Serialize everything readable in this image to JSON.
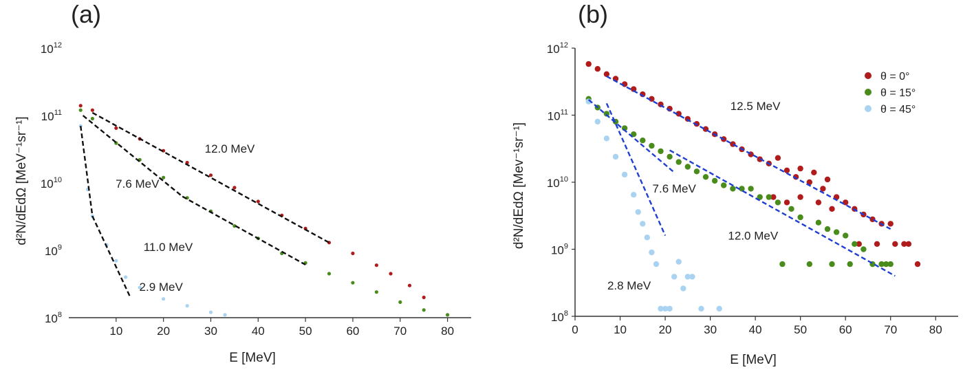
{
  "chart_data": [
    {
      "panel": "(a)",
      "type": "scatter",
      "title": "",
      "xlabel": "E [MeV]",
      "ylabel": "d²N/dEdΩ [MeV⁻¹sr⁻¹]",
      "xlim": [
        0,
        85
      ],
      "ylim": [
        100000000.0,
        1000000000000.0
      ],
      "yscale": "log",
      "x_ticks": [
        "10",
        "20",
        "30",
        "40",
        "50",
        "60",
        "70",
        "80"
      ],
      "y_ticks": [
        {
          "base": "10",
          "exp": "8"
        },
        {
          "base": "10",
          "exp": "9"
        },
        {
          "base": "10",
          "exp": "10"
        },
        {
          "base": "10",
          "exp": "11"
        },
        {
          "base": "10",
          "exp": "12"
        }
      ],
      "grid": false,
      "legend": null,
      "series": [
        {
          "color": "#b01c1c",
          "points": [
            [
              2.5,
              140000000000.0
            ],
            [
              5,
              120000000000.0
            ],
            [
              10,
              65000000000.0
            ],
            [
              15,
              45000000000.0
            ],
            [
              20,
              30000000000.0
            ],
            [
              25,
              20000000000.0
            ],
            [
              30,
              13000000000.0
            ],
            [
              35,
              8500000000.0
            ],
            [
              40,
              5300000000.0
            ],
            [
              45,
              3300000000.0
            ],
            [
              50,
              2100000000.0
            ],
            [
              55,
              1300000000.0
            ],
            [
              60,
              900000000.0
            ],
            [
              65,
              600000000.0
            ],
            [
              68,
              450000000.0
            ],
            [
              72,
              300000000.0
            ],
            [
              75,
              200000000.0
            ]
          ]
        },
        {
          "color": "#4a8c1c",
          "points": [
            [
              2.5,
              120000000000.0
            ],
            [
              5,
              90000000000.0
            ],
            [
              10,
              39000000000.0
            ],
            [
              15,
              22000000000.0
            ],
            [
              20,
              12000000000.0
            ],
            [
              25,
              6000000000.0
            ],
            [
              30,
              3800000000.0
            ],
            [
              35,
              2300000000.0
            ],
            [
              40,
              1500000000.0
            ],
            [
              45,
              900000000.0
            ],
            [
              50,
              650000000.0
            ],
            [
              55,
              450000000.0
            ],
            [
              60,
              330000000.0
            ],
            [
              65,
              240000000.0
            ],
            [
              70,
              170000000.0
            ],
            [
              75,
              130000000.0
            ],
            [
              80,
              110000000.0
            ]
          ]
        },
        {
          "color": "#a9d3f0",
          "points": [
            [
              2.5,
              70000000000.0
            ],
            [
              4,
              8000000000.0
            ],
            [
              5,
              3200000000.0
            ],
            [
              8,
              1200000000.0
            ],
            [
              10,
              700000000.0
            ],
            [
              12,
              400000000.0
            ],
            [
              15,
              280000000.0
            ],
            [
              20,
              190000000.0
            ],
            [
              25,
              150000000.0
            ],
            [
              30,
              120000000.0
            ],
            [
              33,
              110000000.0
            ]
          ]
        }
      ],
      "fits": [
        {
          "label": "12.0 MeV",
          "points": [
            [
              5,
              110000000000.0
            ],
            [
              55,
              1300000000.0
            ]
          ]
        },
        {
          "label": "7.6 MeV",
          "points": [
            [
              3,
              100000000000.0
            ],
            [
              24,
              6300000000.0
            ]
          ]
        },
        {
          "label": "11.0 MeV",
          "points": [
            [
              24,
              6300000000.0
            ],
            [
              50,
              610000000.0
            ]
          ]
        },
        {
          "label": "2.9 MeV",
          "points": [
            [
              2.5,
              70000000000.0
            ],
            [
              5,
              3200000000.0
            ],
            [
              13,
              200000000.0
            ]
          ]
        }
      ],
      "annotations": [
        {
          "text": "12.0 MeV",
          "x": 34,
          "y": 28000000000.0
        },
        {
          "text": "7.6 MeV",
          "x": 14.5,
          "y": 8500000000.0
        },
        {
          "text": "11.0 MeV",
          "x": 21,
          "y": 980000000.0
        },
        {
          "text": "2.9 MeV",
          "x": 19.5,
          "y": 250000000.0
        }
      ]
    },
    {
      "panel": "(b)",
      "type": "scatter",
      "title": "",
      "xlabel": "E [MeV]",
      "ylabel": "d²N/dEdΩ  [Mev⁻¹sr⁻¹]",
      "xlim": [
        0,
        85
      ],
      "ylim": [
        100000000.0,
        1000000000000.0
      ],
      "yscale": "log",
      "x_ticks": [
        "0",
        "10",
        "20",
        "30",
        "40",
        "50",
        "60",
        "70",
        "80"
      ],
      "y_ticks": [
        {
          "base": "10",
          "exp": "8"
        },
        {
          "base": "10",
          "exp": "9"
        },
        {
          "base": "10",
          "exp": "10"
        },
        {
          "base": "10",
          "exp": "11"
        },
        {
          "base": "10",
          "exp": "12"
        }
      ],
      "grid": false,
      "legend": "top-right",
      "series": [
        {
          "name": "θ = 0°",
          "color": "#b01c1c",
          "points": [
            [
              3,
              580000000000.0
            ],
            [
              5,
              490000000000.0
            ],
            [
              7,
              410000000000.0
            ],
            [
              9,
              350000000000.0
            ],
            [
              11,
              290000000000.0
            ],
            [
              13,
              245000000000.0
            ],
            [
              15,
              205000000000.0
            ],
            [
              17,
              175000000000.0
            ],
            [
              19,
              145000000000.0
            ],
            [
              21,
              125000000000.0
            ],
            [
              23,
              105000000000.0
            ],
            [
              25,
              88000000000.0
            ],
            [
              27,
              74000000000.0
            ],
            [
              29,
              62000000000.0
            ],
            [
              31,
              52000000000.0
            ],
            [
              33,
              44000000000.0
            ],
            [
              35,
              37000000000.0
            ],
            [
              37,
              31000000000.0
            ],
            [
              39,
              26000000000.0
            ],
            [
              41,
              22000000000.0
            ],
            [
              43,
              19000000000.0
            ],
            [
              45,
              23000000000.0
            ],
            [
              47,
              15000000000.0
            ],
            [
              49,
              12000000000.0
            ],
            [
              50,
              16000000000.0
            ],
            [
              52,
              10000000000.0
            ],
            [
              53,
              14000000000.0
            ],
            [
              55,
              8000000000.0
            ],
            [
              56,
              11000000000.0
            ],
            [
              58,
              6000000000.0
            ],
            [
              60,
              5000000000.0
            ],
            [
              62,
              4000000000.0
            ],
            [
              64,
              3300000000.0
            ],
            [
              66,
              2800000000.0
            ],
            [
              68,
              2400000000.0
            ],
            [
              70,
              2400000000.0
            ],
            [
              71,
              1200000000.0
            ],
            [
              73,
              1200000000.0
            ],
            [
              76,
              600000000.0
            ],
            [
              44,
              6000000000.0
            ],
            [
              47,
              5000000000.0
            ],
            [
              50,
              6000000000.0
            ],
            [
              54,
              5000000000.0
            ],
            [
              57,
              4000000000.0
            ],
            [
              63,
              1200000000.0
            ],
            [
              67,
              1200000000.0
            ],
            [
              74,
              1200000000.0
            ]
          ]
        },
        {
          "name": "θ = 15°",
          "color": "#4a8c1c",
          "points": [
            [
              3,
              175000000000.0
            ],
            [
              5,
              130000000000.0
            ],
            [
              7,
              105000000000.0
            ],
            [
              9,
              80000000000.0
            ],
            [
              11,
              64000000000.0
            ],
            [
              13,
              52000000000.0
            ],
            [
              15,
              42000000000.0
            ],
            [
              17,
              35000000000.0
            ],
            [
              19,
              29000000000.0
            ],
            [
              21,
              24000000000.0
            ],
            [
              23,
              20000000000.0
            ],
            [
              25,
              17000000000.0
            ],
            [
              27,
              14500000000.0
            ],
            [
              29,
              12000000000.0
            ],
            [
              31,
              10500000000.0
            ],
            [
              33,
              9000000000.0
            ],
            [
              35,
              8000000000.0
            ],
            [
              37,
              8000000000.0
            ],
            [
              39,
              8000000000.0
            ],
            [
              41,
              6000000000.0
            ],
            [
              43,
              6000000000.0
            ],
            [
              45,
              5000000000.0
            ],
            [
              46,
              600000000.0
            ],
            [
              48,
              4000000000.0
            ],
            [
              50,
              3000000000.0
            ],
            [
              52,
              600000000.0
            ],
            [
              54,
              2500000000.0
            ],
            [
              56,
              2000000000.0
            ],
            [
              57,
              600000000.0
            ],
            [
              58,
              1800000000.0
            ],
            [
              60,
              1600000000.0
            ],
            [
              61,
              600000000.0
            ],
            [
              62,
              1200000000.0
            ],
            [
              64,
              1000000000.0
            ],
            [
              66,
              600000000.0
            ],
            [
              68,
              600000000.0
            ],
            [
              69,
              600000000.0
            ],
            [
              70,
              600000000.0
            ]
          ]
        },
        {
          "name": "θ = 45°",
          "color": "#a9d3f0",
          "points": [
            [
              3,
              160000000000.0
            ],
            [
              5,
              80000000000.0
            ],
            [
              7,
              45000000000.0
            ],
            [
              9,
              24000000000.0
            ],
            [
              11,
              13000000000.0
            ],
            [
              13,
              6500000000.0
            ],
            [
              14,
              3600000000.0
            ],
            [
              15,
              2400000000.0
            ],
            [
              16,
              1500000000.0
            ],
            [
              17,
              900000000.0
            ],
            [
              18,
              600000000.0
            ],
            [
              19,
              130000000.0
            ],
            [
              20,
              130000000.0
            ],
            [
              21,
              130000000.0
            ],
            [
              22,
              390000000.0
            ],
            [
              23,
              650000000.0
            ],
            [
              24,
              260000000.0
            ],
            [
              25,
              390000000.0
            ],
            [
              26,
              390000000.0
            ],
            [
              28,
              130000000.0
            ],
            [
              32,
              130000000.0
            ]
          ]
        }
      ],
      "fits": [
        {
          "label": "12.5 MeV",
          "points": [
            [
              7,
              380000000000.0
            ],
            [
              70,
              2000000000.0
            ]
          ]
        },
        {
          "label": "7.6 MeV",
          "points": [
            [
              3,
              170000000000.0
            ],
            [
              22,
              14000000000.0
            ]
          ]
        },
        {
          "label": "12.0 MeV",
          "points": [
            [
              21,
              30000000000.0
            ],
            [
              71,
              400000000.0
            ]
          ]
        },
        {
          "label": "2.8 MeV",
          "points": [
            [
              7,
              150000000000.0
            ],
            [
              20,
              1600000000.0
            ]
          ]
        }
      ],
      "annotations": [
        {
          "text": "12.5 MeV",
          "x": 40,
          "y": 120000000000.0
        },
        {
          "text": "7.6 MeV",
          "x": 22,
          "y": 7000000000.0
        },
        {
          "text": "12.0 MeV",
          "x": 39.5,
          "y": 1400000000.0
        },
        {
          "text": "2.8 MeV",
          "x": 12,
          "y": 250000000.0
        }
      ]
    }
  ]
}
